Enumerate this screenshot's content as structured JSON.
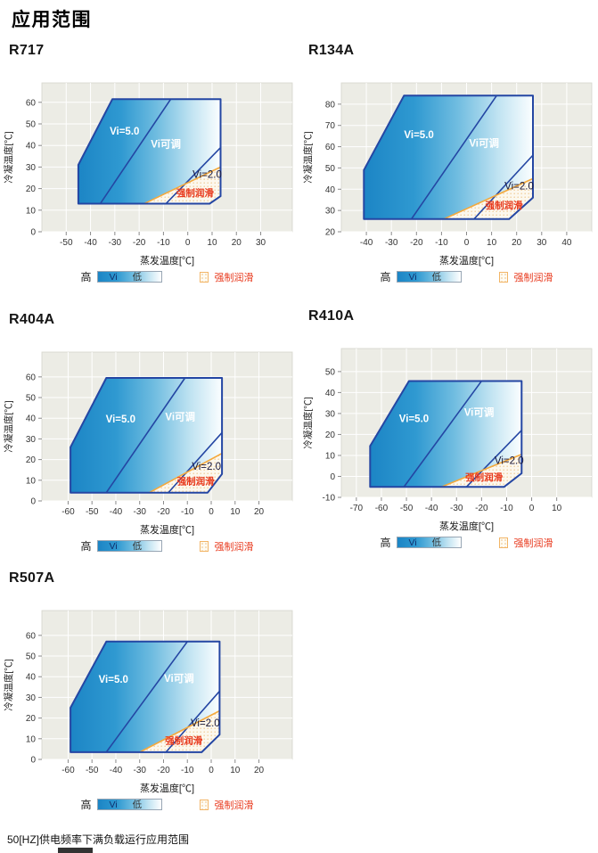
{
  "page": {
    "title": "应用范围",
    "footer_note": "50[HZ]供电频率下满负载运行应用范围"
  },
  "legend": {
    "high": "高",
    "vi": "Vi",
    "low": "低",
    "forced_lube": "强制润滑"
  },
  "colors": {
    "region_blue": "#1c85c5",
    "boundary_navy": "#2446a3",
    "lube_orange": "#f4a93c",
    "lube_red": "#e8391d",
    "plot_bg": "#ecece5",
    "grid": "#ffffff"
  },
  "chart_data": [
    {
      "type": "area",
      "title": "R717",
      "xlabel": "蒸发温度[℃]",
      "ylabel": "冷凝温度[℃]",
      "xlim": [
        -60,
        43
      ],
      "ylim": [
        0,
        69
      ],
      "x_ticks": [
        -50,
        -40,
        -30,
        -20,
        -10,
        0,
        10,
        20,
        30
      ],
      "y_ticks": [
        0,
        10,
        20,
        30,
        40,
        50,
        60
      ],
      "envelope": [
        [
          -45,
          13
        ],
        [
          -45,
          31
        ],
        [
          -31,
          61.5
        ],
        [
          13.5,
          61.5
        ],
        [
          13.5,
          16.5
        ],
        [
          9,
          13
        ]
      ],
      "vi5_divider": [
        [
          -36,
          13
        ],
        [
          -7,
          61.5
        ]
      ],
      "vi2_divider": [
        [
          -9,
          13
        ],
        [
          13.5,
          39
        ]
      ],
      "lube_line": [
        [
          -18,
          13
        ],
        [
          13.5,
          30
        ]
      ],
      "lube_region": [
        [
          -18,
          13
        ],
        [
          9,
          13
        ],
        [
          13.5,
          16.5
        ],
        [
          13.5,
          30
        ]
      ],
      "region_labels": [
        {
          "text": "Vi=5.0",
          "x": -26,
          "y": 45,
          "style": "light"
        },
        {
          "text": "Vi可调",
          "x": -9,
          "y": 39,
          "style": "light"
        },
        {
          "text": "Vi=2.0",
          "x": 8,
          "y": 25,
          "style": "dark"
        },
        {
          "text": "强制润滑",
          "x": 3,
          "y": 16.5,
          "style": "lube"
        }
      ]
    },
    {
      "type": "area",
      "title": "R134A",
      "xlabel": "蒸发温度[℃]",
      "ylabel": "冷凝温度[℃]",
      "xlim": [
        -50,
        50
      ],
      "ylim": [
        20,
        90
      ],
      "x_ticks": [
        -40,
        -30,
        -20,
        -10,
        0,
        10,
        20,
        30,
        40
      ],
      "y_ticks": [
        20,
        30,
        40,
        50,
        60,
        70,
        80
      ],
      "envelope": [
        [
          -41,
          26
        ],
        [
          -41,
          49
        ],
        [
          -25,
          84
        ],
        [
          26.5,
          84
        ],
        [
          26.5,
          36
        ],
        [
          17,
          26
        ]
      ],
      "vi5_divider": [
        [
          -22,
          26
        ],
        [
          12,
          84
        ]
      ],
      "vi2_divider": [
        [
          3,
          26
        ],
        [
          26.5,
          56
        ]
      ],
      "lube_line": [
        [
          -9,
          26
        ],
        [
          26.5,
          45
        ]
      ],
      "lube_region": [
        [
          -9,
          26
        ],
        [
          17,
          26
        ],
        [
          26.5,
          36
        ],
        [
          26.5,
          45
        ]
      ],
      "region_labels": [
        {
          "text": "Vi=5.0",
          "x": -19,
          "y": 64,
          "style": "light"
        },
        {
          "text": "Vi可调",
          "x": 7,
          "y": 60,
          "style": "light"
        },
        {
          "text": "Vi=2.0",
          "x": 21,
          "y": 40,
          "style": "dark"
        },
        {
          "text": "强制润滑",
          "x": 15,
          "y": 31,
          "style": "lube"
        }
      ]
    },
    {
      "type": "area",
      "title": "R404A",
      "xlabel": "蒸发温度[℃]",
      "ylabel": "冷凝温度[℃]",
      "xlim": [
        -71,
        34
      ],
      "ylim": [
        0,
        72
      ],
      "x_ticks": [
        -60,
        -50,
        -40,
        -30,
        -20,
        -10,
        0,
        10,
        20
      ],
      "y_ticks": [
        0,
        10,
        20,
        30,
        40,
        50,
        60
      ],
      "envelope": [
        [
          -59,
          4
        ],
        [
          -59,
          26
        ],
        [
          -44,
          59.5
        ],
        [
          4.5,
          59.5
        ],
        [
          4.5,
          13
        ],
        [
          -1.5,
          4
        ]
      ],
      "vi5_divider": [
        [
          -44,
          4
        ],
        [
          -11,
          59.5
        ]
      ],
      "vi2_divider": [
        [
          -18,
          4
        ],
        [
          4.5,
          33
        ]
      ],
      "lube_line": [
        [
          -26,
          4
        ],
        [
          4.5,
          23
        ]
      ],
      "lube_region": [
        [
          -26,
          4
        ],
        [
          -1.5,
          4
        ],
        [
          4.5,
          13
        ],
        [
          4.5,
          23
        ]
      ],
      "region_labels": [
        {
          "text": "Vi=5.0",
          "x": -38,
          "y": 38,
          "style": "light"
        },
        {
          "text": "Vi可调",
          "x": -13,
          "y": 39,
          "style": "light"
        },
        {
          "text": "Vi=2.0",
          "x": -2,
          "y": 15,
          "style": "dark"
        },
        {
          "text": "强制润滑",
          "x": -6.5,
          "y": 8,
          "style": "lube"
        }
      ]
    },
    {
      "type": "area",
      "title": "R410A",
      "xlabel": "蒸发温度[℃]",
      "ylabel": "冷凝温度[℃]",
      "xlim": [
        -76,
        24
      ],
      "ylim": [
        -10,
        61
      ],
      "x_ticks": [
        -70,
        -60,
        -50,
        -40,
        -30,
        -20,
        -10,
        0,
        10
      ],
      "y_ticks": [
        -10,
        0,
        10,
        20,
        30,
        40,
        50
      ],
      "envelope": [
        [
          -64.5,
          -5
        ],
        [
          -64.5,
          14.5
        ],
        [
          -49,
          45.5
        ],
        [
          -4,
          45.5
        ],
        [
          -4,
          1.5
        ],
        [
          -11,
          -5
        ]
      ],
      "vi5_divider": [
        [
          -51,
          -5
        ],
        [
          -20,
          45.5
        ]
      ],
      "vi2_divider": [
        [
          -26,
          -5
        ],
        [
          -4,
          22
        ]
      ],
      "lube_line": [
        [
          -36,
          -5
        ],
        [
          -4,
          10.5
        ]
      ],
      "lube_region": [
        [
          -36,
          -5
        ],
        [
          -11,
          -5
        ],
        [
          -4,
          1.5
        ],
        [
          -4,
          10.5
        ]
      ],
      "region_labels": [
        {
          "text": "Vi=5.0",
          "x": -47,
          "y": 26,
          "style": "light"
        },
        {
          "text": "Vi可调",
          "x": -21,
          "y": 29,
          "style": "light"
        },
        {
          "text": "Vi=2.0",
          "x": -9,
          "y": 6,
          "style": "dark"
        },
        {
          "text": "强制润滑",
          "x": -19,
          "y": -2,
          "style": "lube"
        }
      ]
    },
    {
      "type": "area",
      "title": "R507A",
      "xlabel": "蒸发温度[℃]",
      "ylabel": "冷凝温度[℃]",
      "xlim": [
        -71,
        34
      ],
      "ylim": [
        0,
        72
      ],
      "x_ticks": [
        -60,
        -50,
        -40,
        -30,
        -20,
        -10,
        0,
        10,
        20
      ],
      "y_ticks": [
        0,
        10,
        20,
        30,
        40,
        50,
        60
      ],
      "envelope": [
        [
          -59,
          3.5
        ],
        [
          -59,
          25
        ],
        [
          -44,
          57
        ],
        [
          3.5,
          57
        ],
        [
          3.5,
          12
        ],
        [
          -4,
          3.5
        ]
      ],
      "vi5_divider": [
        [
          -44,
          3.5
        ],
        [
          -10,
          57
        ]
      ],
      "vi2_divider": [
        [
          -19,
          3.5
        ],
        [
          3.5,
          33
        ]
      ],
      "lube_line": [
        [
          -30,
          3.5
        ],
        [
          3.5,
          23.5
        ]
      ],
      "lube_region": [
        [
          -30,
          3.5
        ],
        [
          -4,
          3.5
        ],
        [
          3.5,
          12
        ],
        [
          3.5,
          23.5
        ]
      ],
      "region_labels": [
        {
          "text": "Vi=5.0",
          "x": -41,
          "y": 37,
          "style": "light"
        },
        {
          "text": "Vi可调",
          "x": -13.5,
          "y": 37.5,
          "style": "light"
        },
        {
          "text": "Vi=2.0",
          "x": -2.5,
          "y": 16,
          "style": "dark"
        },
        {
          "text": "强制润滑",
          "x": -11.5,
          "y": 7.5,
          "style": "lube"
        }
      ]
    }
  ]
}
